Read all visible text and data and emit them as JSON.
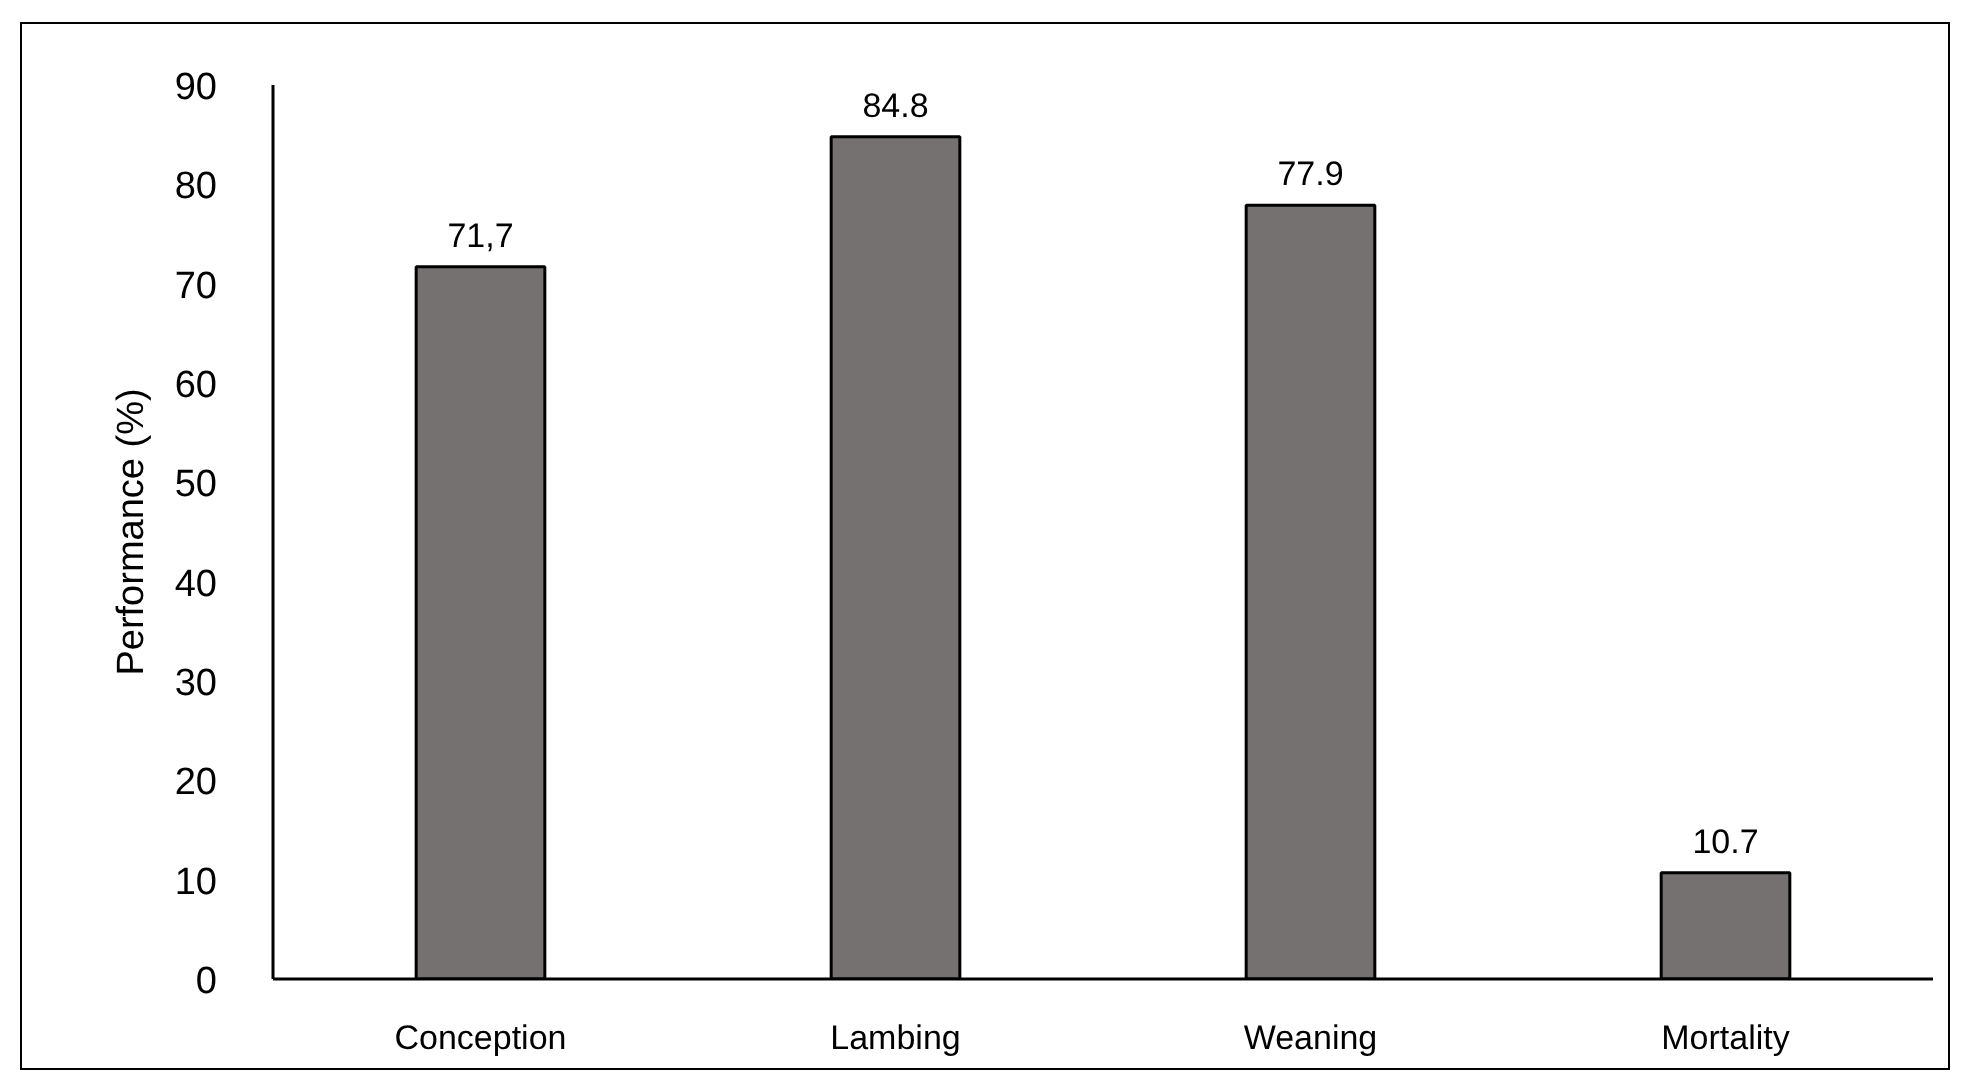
{
  "chart_data": {
    "type": "bar",
    "ylabel": "Performance (%)",
    "categories": [
      "Conception",
      "Lambing",
      "Weaning",
      "Mortality"
    ],
    "values": [
      71.7,
      84.8,
      77.9,
      10.7
    ],
    "value_labels": [
      "71,7",
      "84.8",
      "77.9",
      "10.7"
    ],
    "color": "#767171",
    "ylim": [
      0,
      90
    ],
    "yticks": [
      0,
      10,
      20,
      30,
      40,
      50,
      60,
      70,
      80,
      90
    ]
  }
}
